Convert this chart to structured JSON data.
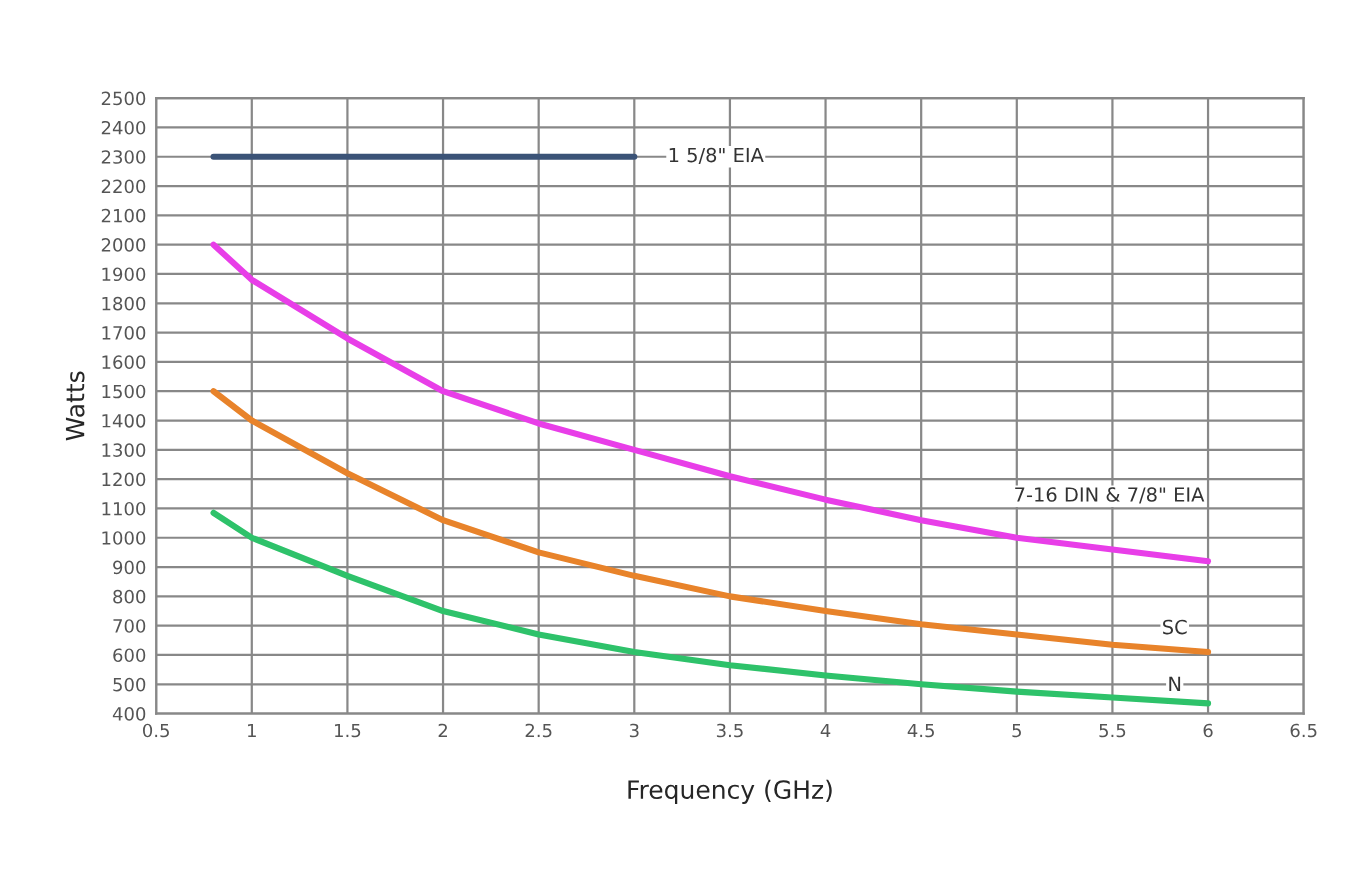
{
  "chart_data": {
    "type": "line",
    "xlabel": "Frequency (GHz)",
    "ylabel": "Watts",
    "xlim": [
      0.5,
      6.5
    ],
    "xticks": [
      0.5,
      1,
      1.5,
      2,
      2.5,
      3,
      3.5,
      4,
      4.5,
      5,
      5.5,
      6,
      6.5
    ],
    "ylim": [
      400,
      2500
    ],
    "yticks": [
      400,
      500,
      600,
      700,
      800,
      900,
      1000,
      1100,
      1200,
      1300,
      1400,
      1500,
      1600,
      1700,
      1800,
      1900,
      2000,
      2100,
      2200,
      2300,
      2400,
      2500
    ],
    "grid": true,
    "legend": false,
    "marker": "none",
    "line_style": "solid",
    "series": [
      {
        "name": "1 5/8\" EIA",
        "color": "#3b5377",
        "x": [
          0.8,
          3
        ],
        "values": [
          2300,
          2300
        ]
      },
      {
        "name": "7-16 DIN & 7/8\" EIA",
        "color": "#e83ee8",
        "x": [
          0.8,
          1,
          1.5,
          2,
          2.5,
          3,
          3.5,
          4,
          4.5,
          5,
          5.5,
          6
        ],
        "values": [
          2000,
          1880,
          1680,
          1500,
          1390,
          1300,
          1210,
          1130,
          1060,
          1000,
          960,
          920
        ]
      },
      {
        "name": "SC",
        "color": "#e8832a",
        "x": [
          0.8,
          1,
          1.5,
          2,
          2.5,
          3,
          3.5,
          4,
          4.5,
          5,
          5.5,
          6
        ],
        "values": [
          1500,
          1400,
          1220,
          1060,
          950,
          870,
          800,
          750,
          705,
          670,
          635,
          610
        ]
      },
      {
        "name": "N",
        "color": "#2ec26a",
        "x": [
          0.8,
          1,
          1.5,
          2,
          2.5,
          3,
          3.5,
          4,
          4.5,
          5,
          5.5,
          6
        ],
        "values": [
          1085,
          1000,
          870,
          750,
          670,
          610,
          565,
          530,
          500,
          475,
          455,
          435
        ]
      }
    ]
  }
}
